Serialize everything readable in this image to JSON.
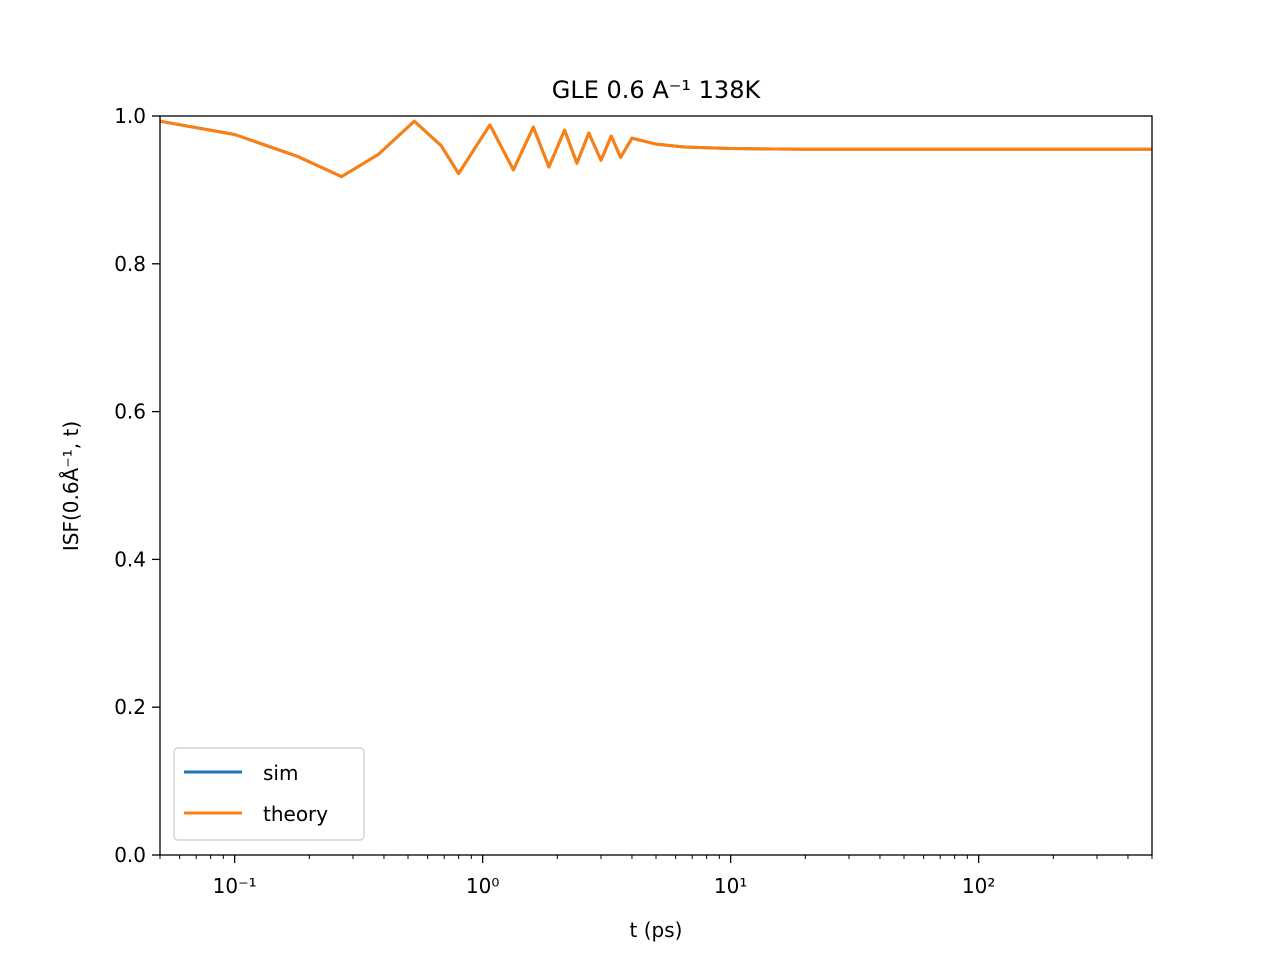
{
  "chart_data": {
    "type": "line",
    "title": "GLE 0.6 A⁻¹ 138K",
    "xlabel": "t (ps)",
    "ylabel": "ISF(0.6Å⁻¹, t)",
    "xscale": "log",
    "xlim": [
      0.05,
      500
    ],
    "ylim": [
      0.0,
      1.0
    ],
    "x_ticks": [
      {
        "value": 0.1,
        "label": "10⁻¹"
      },
      {
        "value": 1,
        "label": "10⁰"
      },
      {
        "value": 10,
        "label": "10¹"
      },
      {
        "value": 100,
        "label": "10²"
      }
    ],
    "y_ticks": [
      {
        "value": 0.0,
        "label": "0.0"
      },
      {
        "value": 0.2,
        "label": "0.2"
      },
      {
        "value": 0.4,
        "label": "0.4"
      },
      {
        "value": 0.6,
        "label": "0.6"
      },
      {
        "value": 0.8,
        "label": "0.8"
      },
      {
        "value": 1.0,
        "label": "1.0"
      }
    ],
    "grid": false,
    "legend_position": "lower-left",
    "series": [
      {
        "name": "sim",
        "color": "#1f77b4",
        "x": [
          0.05,
          0.1,
          0.18,
          0.27,
          0.38,
          0.53,
          0.68,
          0.8,
          1.07,
          1.33,
          1.6,
          1.85,
          2.14,
          2.4,
          2.68,
          3.0,
          3.3,
          3.6,
          4.0,
          5.0,
          6.5,
          8.0,
          10.0,
          20.0,
          50.0,
          100.0,
          200.0,
          500.0
        ],
        "y": [
          0.993,
          0.975,
          0.945,
          0.918,
          0.948,
          0.993,
          0.96,
          0.922,
          0.988,
          0.927,
          0.985,
          0.931,
          0.981,
          0.936,
          0.977,
          0.94,
          0.973,
          0.944,
          0.97,
          0.962,
          0.958,
          0.957,
          0.956,
          0.955,
          0.955,
          0.955,
          0.955,
          0.955
        ]
      },
      {
        "name": "theory",
        "color": "#ff7f0e",
        "x": [
          0.05,
          0.1,
          0.18,
          0.27,
          0.38,
          0.53,
          0.68,
          0.8,
          1.07,
          1.33,
          1.6,
          1.85,
          2.14,
          2.4,
          2.68,
          3.0,
          3.3,
          3.6,
          4.0,
          5.0,
          6.5,
          8.0,
          10.0,
          20.0,
          50.0,
          100.0,
          200.0,
          500.0
        ],
        "y": [
          0.993,
          0.975,
          0.945,
          0.918,
          0.948,
          0.993,
          0.96,
          0.922,
          0.988,
          0.927,
          0.985,
          0.931,
          0.981,
          0.936,
          0.977,
          0.94,
          0.973,
          0.944,
          0.97,
          0.962,
          0.958,
          0.957,
          0.956,
          0.955,
          0.955,
          0.955,
          0.955,
          0.955
        ]
      }
    ]
  }
}
